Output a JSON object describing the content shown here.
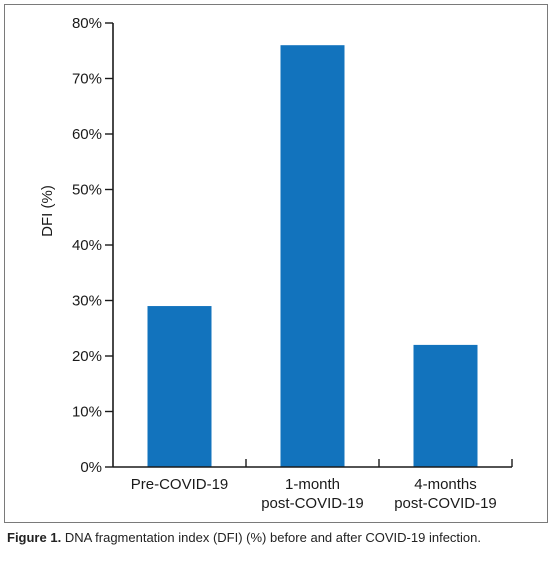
{
  "chart_data": {
    "type": "bar",
    "categories": [
      [
        "Pre-COVID-19"
      ],
      [
        "1-month",
        "post-COVID-19"
      ],
      [
        "4-months",
        "post-COVID-19"
      ]
    ],
    "values": [
      29,
      76,
      22
    ],
    "ylabel": "DFI (%)",
    "ylim": [
      0,
      80
    ],
    "yticks": [
      0,
      10,
      20,
      30,
      40,
      50,
      60,
      70,
      80
    ],
    "ytick_suffix": "%",
    "bar_color": "#1273bd",
    "grid": false
  },
  "caption": {
    "label": "Figure 1.",
    "text": "DNA fragmentation index (DFI) (%) before and after COVID-19 infection."
  }
}
